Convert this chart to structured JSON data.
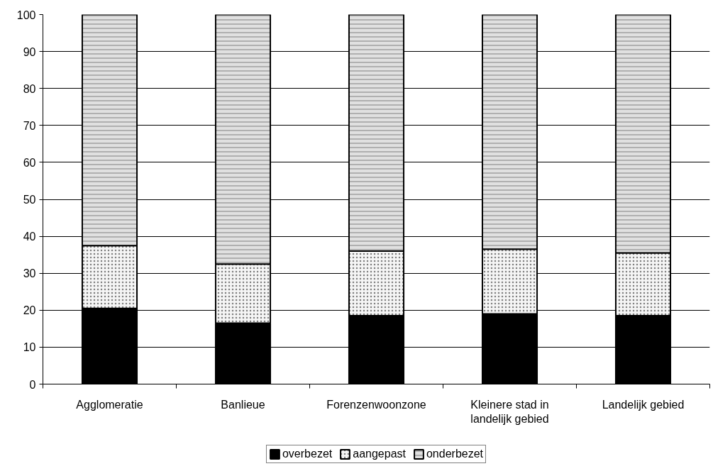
{
  "chart_data": {
    "type": "bar",
    "stacked": true,
    "categories": [
      "Agglomeratie",
      "Banlieue",
      "Forenzenwoonzone",
      "Kleinere stad in landelijk gebied",
      "Landelijk gebied"
    ],
    "series": [
      {
        "name": "overbezet",
        "color": "#000000",
        "values": [
          20.5,
          16.5,
          18.5,
          19,
          18.5
        ]
      },
      {
        "name": "aangepast",
        "color": "#f5f5f5",
        "values": [
          17,
          16,
          17.5,
          17.5,
          17
        ]
      },
      {
        "name": "onderbezet",
        "color": "#e0e0e0",
        "values": [
          62.5,
          67.5,
          64,
          63.5,
          64.5
        ]
      }
    ],
    "ylim": [
      0,
      100
    ],
    "yticks": [
      0,
      10,
      20,
      30,
      40,
      50,
      60,
      70,
      80,
      90,
      100
    ],
    "grid": "y",
    "legend": "bottom"
  }
}
